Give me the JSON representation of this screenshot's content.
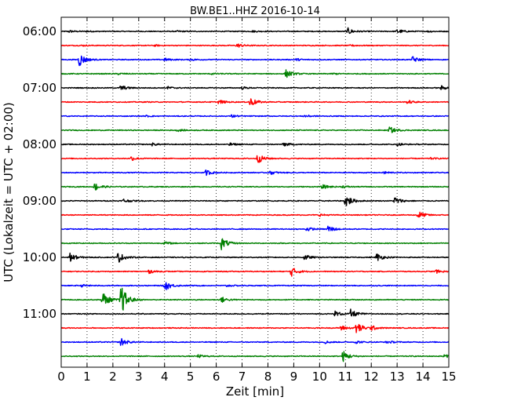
{
  "chart_data": {
    "type": "line",
    "title": "BW.BE1..HHZ 2016-10-14",
    "xlabel": "Zeit  [min]",
    "ylabel": "UTC (Lokalzeit = UTC + 02:00)",
    "xlim": [
      0,
      15
    ],
    "x_ticks": [
      "0",
      "1",
      "2",
      "3",
      "4",
      "5",
      "6",
      "7",
      "8",
      "9",
      "10",
      "11",
      "12",
      "13",
      "14",
      "15"
    ],
    "y_tick_labels": [
      "06:00",
      "07:00",
      "08:00",
      "09:00",
      "10:00",
      "11:00"
    ],
    "grid": "vertical dotted",
    "trace_interval_min": 15,
    "trace_colors": [
      "#000000",
      "#ff0000",
      "#0000ff",
      "#008000"
    ],
    "traces": [
      {
        "start": "06:00",
        "color": "#000000",
        "events": [
          [
            0.3,
            0.15
          ],
          [
            1.0,
            0.08
          ],
          [
            4.5,
            0.08
          ],
          [
            7.4,
            0.1
          ],
          [
            11.1,
            0.45
          ],
          [
            13.0,
            0.35
          ],
          [
            14.2,
            0.1
          ]
        ]
      },
      {
        "start": "06:15",
        "color": "#ff0000",
        "events": [
          [
            0.8,
            0.08
          ],
          [
            3.6,
            0.1
          ],
          [
            6.8,
            0.3
          ],
          [
            11.2,
            0.1
          ]
        ]
      },
      {
        "start": "06:30",
        "color": "#0000ff",
        "events": [
          [
            0.7,
            1.0
          ],
          [
            4.0,
            0.2
          ],
          [
            5.0,
            0.15
          ],
          [
            9.1,
            0.15
          ],
          [
            13.6,
            0.45
          ]
        ]
      },
      {
        "start": "06:45",
        "color": "#008000",
        "events": [
          [
            2.2,
            0.1
          ],
          [
            5.8,
            0.1
          ],
          [
            8.7,
            0.6
          ],
          [
            10.5,
            0.1
          ]
        ]
      },
      {
        "start": "07:00",
        "color": "#000000",
        "events": [
          [
            2.3,
            0.4
          ],
          [
            4.1,
            0.2
          ],
          [
            7.0,
            0.15
          ],
          [
            14.7,
            0.3
          ]
        ]
      },
      {
        "start": "07:15",
        "color": "#ff0000",
        "events": [
          [
            6.1,
            0.3
          ],
          [
            7.3,
            0.7
          ],
          [
            13.4,
            0.25
          ]
        ]
      },
      {
        "start": "07:30",
        "color": "#0000ff",
        "events": [
          [
            3.3,
            0.1
          ],
          [
            6.6,
            0.2
          ],
          [
            9.4,
            0.2
          ]
        ]
      },
      {
        "start": "07:45",
        "color": "#008000",
        "events": [
          [
            4.5,
            0.15
          ],
          [
            12.7,
            0.5
          ]
        ]
      },
      {
        "start": "08:00",
        "color": "#000000",
        "events": [
          [
            3.5,
            0.2
          ],
          [
            6.5,
            0.2
          ],
          [
            8.6,
            0.3
          ],
          [
            13.0,
            0.2
          ]
        ]
      },
      {
        "start": "08:15",
        "color": "#ff0000",
        "events": [
          [
            2.7,
            0.3
          ],
          [
            7.6,
            0.7
          ],
          [
            14.3,
            0.1
          ]
        ]
      },
      {
        "start": "08:30",
        "color": "#0000ff",
        "events": [
          [
            5.6,
            0.4
          ],
          [
            8.1,
            0.25
          ],
          [
            12.5,
            0.2
          ]
        ]
      },
      {
        "start": "08:45",
        "color": "#008000",
        "events": [
          [
            1.3,
            0.6
          ],
          [
            10.1,
            0.3
          ],
          [
            10.9,
            0.15
          ]
        ]
      },
      {
        "start": "09:00",
        "color": "#000000",
        "events": [
          [
            2.4,
            0.3
          ],
          [
            11.0,
            1.0
          ],
          [
            12.9,
            0.6
          ]
        ]
      },
      {
        "start": "09:15",
        "color": "#ff0000",
        "events": [
          [
            10.0,
            0.15
          ],
          [
            13.8,
            0.6
          ]
        ]
      },
      {
        "start": "09:30",
        "color": "#0000ff",
        "events": [
          [
            9.5,
            0.3
          ],
          [
            10.3,
            0.6
          ]
        ]
      },
      {
        "start": "09:45",
        "color": "#008000",
        "events": [
          [
            4.0,
            0.2
          ],
          [
            6.2,
            0.9
          ]
        ]
      },
      {
        "start": "10:00",
        "color": "#000000",
        "events": [
          [
            0.3,
            0.8
          ],
          [
            2.2,
            0.8
          ],
          [
            9.4,
            0.4
          ],
          [
            12.2,
            0.6
          ]
        ]
      },
      {
        "start": "10:15",
        "color": "#ff0000",
        "events": [
          [
            3.4,
            0.25
          ],
          [
            8.9,
            0.7
          ],
          [
            14.5,
            0.25
          ]
        ]
      },
      {
        "start": "10:30",
        "color": "#0000ff",
        "events": [
          [
            4.0,
            0.8
          ],
          [
            0.8,
            0.15
          ],
          [
            6.4,
            0.15
          ]
        ]
      },
      {
        "start": "10:45",
        "color": "#008000",
        "events": [
          [
            1.6,
            1.2
          ],
          [
            2.3,
            2.4
          ],
          [
            6.2,
            0.4
          ]
        ]
      },
      {
        "start": "11:00",
        "color": "#000000",
        "events": [
          [
            10.6,
            0.4
          ],
          [
            11.2,
            0.6
          ]
        ]
      },
      {
        "start": "11:15",
        "color": "#ff0000",
        "events": [
          [
            10.8,
            0.4
          ],
          [
            11.4,
            1.0
          ],
          [
            12.0,
            0.3
          ]
        ]
      },
      {
        "start": "11:30",
        "color": "#0000ff",
        "events": [
          [
            2.3,
            0.6
          ],
          [
            10.2,
            0.2
          ],
          [
            11.4,
            0.2
          ],
          [
            12.6,
            0.2
          ]
        ]
      },
      {
        "start": "11:45",
        "color": "#008000",
        "events": [
          [
            5.3,
            0.2
          ],
          [
            10.9,
            0.8
          ],
          [
            14.8,
            0.25
          ]
        ]
      }
    ]
  }
}
